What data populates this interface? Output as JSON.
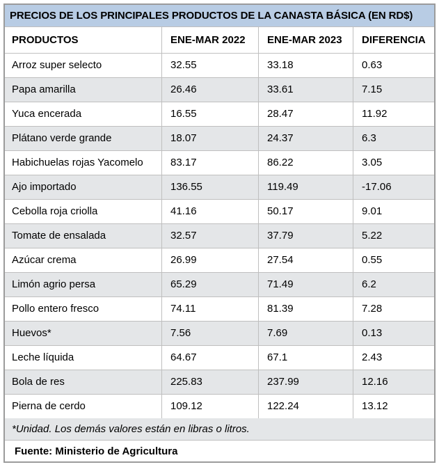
{
  "chart_data": {
    "type": "table",
    "title": "PRECIOS DE LOS PRINCIPALES PRODUCTOS DE LA CANASTA BÁSICA (EN RD$)",
    "columns": [
      "PRODUCTOS",
      "ENE-MAR 2022",
      "ENE-MAR 2023",
      "DIFERENCIA"
    ],
    "rows": [
      [
        "Arroz super selecto",
        32.55,
        33.18,
        0.63
      ],
      [
        "Papa amarilla",
        26.46,
        33.61,
        7.15
      ],
      [
        "Yuca encerada",
        16.55,
        28.47,
        11.92
      ],
      [
        "Plátano verde grande",
        18.07,
        24.37,
        6.3
      ],
      [
        "Habichuelas rojas Yacomelo",
        83.17,
        86.22,
        3.05
      ],
      [
        "Ajo importado",
        136.55,
        119.49,
        -17.06
      ],
      [
        "Cebolla roja criolla",
        41.16,
        50.17,
        9.01
      ],
      [
        "Tomate de ensalada",
        32.57,
        37.79,
        5.22
      ],
      [
        "Azúcar crema",
        26.99,
        27.54,
        0.55
      ],
      [
        "Limón agrio persa",
        65.29,
        71.49,
        6.2
      ],
      [
        "Pollo entero fresco",
        74.11,
        81.39,
        7.28
      ],
      [
        "Huevos*",
        7.56,
        7.69,
        0.13
      ],
      [
        "Leche líquida",
        64.67,
        67.1,
        2.43
      ],
      [
        "Bola de res",
        225.83,
        237.99,
        12.16
      ],
      [
        "Pierna de cerdo",
        109.12,
        122.24,
        13.12
      ]
    ],
    "footnote": "*Unidad. Los demás valores están en libras o litros.",
    "source": "Fuente: Ministerio de Agricultura",
    "layout": {
      "alternating_rows": true,
      "first_data_row_background": "white",
      "legend_position": "none",
      "grid": "full-borders"
    }
  },
  "colors": {
    "title_bg": "#b8cce4",
    "alt_row_bg": "#e4e6e8",
    "cell_border": "#bfbfbf",
    "outer_border": "#9b9b9b",
    "text": "#000000"
  }
}
